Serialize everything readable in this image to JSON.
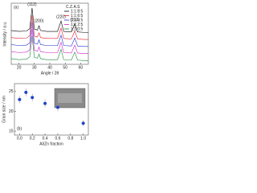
{
  "chart_data": [
    {
      "type": "line",
      "panel_label": "(a)",
      "x_label": "Angle / 2θ",
      "y_label": "Intensity / a.u.",
      "x": [
        15,
        20,
        25,
        27,
        28.5,
        30,
        32,
        33,
        34,
        38,
        45,
        47.3,
        49,
        54,
        56.2,
        58,
        62,
        65
      ],
      "xlim": [
        15,
        65
      ],
      "xticks": [
        20,
        30,
        40,
        50,
        60
      ],
      "ylim": [
        0,
        13
      ],
      "legend_title": "C.Z.A.S",
      "legend": "upper right",
      "annotations": [
        "(112)",
        "(200)",
        "(220)",
        "(312)"
      ],
      "series": [
        {
          "name": "1:1:8:5",
          "color": "#000000",
          "values": [
            7.2,
            7.0,
            7.1,
            7.6,
            12.0,
            7.5,
            7.3,
            8.2,
            7.2,
            7.0,
            7.0,
            9.2,
            7.0,
            6.9,
            8.6,
            6.9,
            6.8,
            6.8
          ]
        },
        {
          "name": "1:1:6:5",
          "color": "#e0202a",
          "values": [
            5.7,
            5.5,
            5.6,
            6.1,
            10.5,
            6.0,
            5.8,
            6.7,
            5.7,
            5.5,
            5.5,
            7.7,
            5.5,
            5.4,
            7.1,
            5.4,
            5.3,
            5.3
          ]
        },
        {
          "name": "1:1:4:5",
          "color": "#2233cc",
          "values": [
            4.2,
            4.0,
            4.1,
            4.6,
            9.0,
            4.5,
            4.3,
            5.2,
            4.2,
            4.0,
            4.0,
            6.2,
            4.0,
            3.9,
            5.6,
            3.9,
            3.8,
            3.8
          ]
        },
        {
          "name": "1:1:2:5",
          "color": "#cc22cc",
          "values": [
            2.7,
            2.5,
            2.6,
            3.1,
            7.5,
            3.0,
            2.8,
            3.7,
            2.7,
            2.5,
            2.5,
            4.7,
            2.5,
            2.4,
            4.1,
            2.4,
            2.3,
            2.3
          ]
        },
        {
          "name": "1:1:0:5",
          "color": "#1a8a3a",
          "values": [
            1.2,
            1.0,
            1.1,
            1.6,
            6.0,
            1.5,
            1.3,
            2.2,
            1.2,
            1.0,
            1.0,
            3.2,
            1.0,
            0.9,
            2.6,
            0.9,
            0.8,
            0.8
          ]
        }
      ]
    },
    {
      "type": "scatter",
      "panel_label": "(b)",
      "x_label": "Al/Zn fraction",
      "y_label": "Grain size / nm",
      "x": [
        0.0,
        0.1,
        0.2,
        0.4,
        0.6,
        1.0
      ],
      "values": [
        23,
        24.8,
        23.5,
        22,
        21,
        17
      ],
      "errors": [
        1,
        1,
        1,
        1,
        1,
        0.8
      ],
      "color": "#2244cc",
      "xlim": [
        -0.08,
        1.08
      ],
      "ylim": [
        14,
        27
      ],
      "xticks": [
        {
          "value": 0,
          "label": "0.0"
        },
        {
          "value": 0.2,
          "label": "0.2"
        },
        {
          "value": 0.4,
          "label": "0.4"
        },
        {
          "value": 0.6,
          "label": "0.6"
        },
        {
          "value": 0.8,
          "label": "0.8"
        },
        {
          "value": 1,
          "label": "1.0"
        }
      ],
      "yticks": [
        15,
        20,
        25
      ]
    }
  ]
}
